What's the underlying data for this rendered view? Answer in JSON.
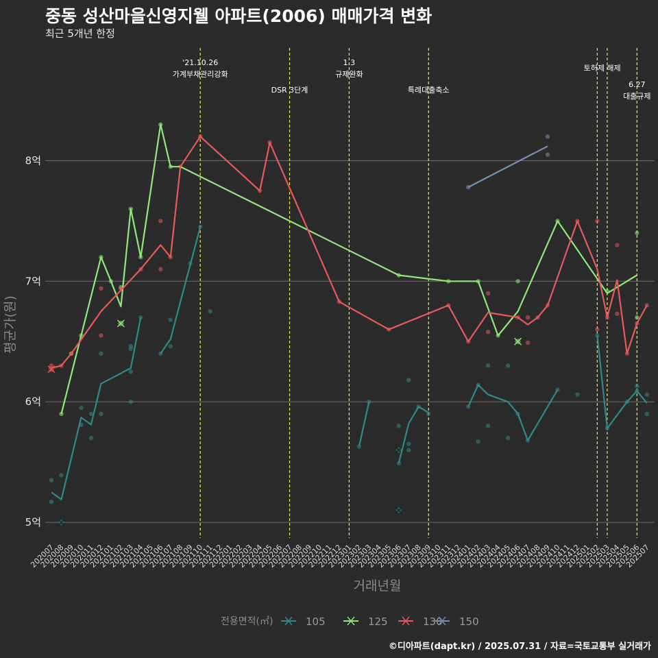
{
  "title": "중동 성산마을신영지웰 아파트(2006) 매매가격 변화",
  "subtitle": "최근 5개년 한정",
  "footer": "©디아파트(dapt.kr) / 2025.07.31 / 자료=국토교통부 실거래가",
  "colors": {
    "background": "#2b2b2b",
    "grid": "#6e6e6e",
    "event_line": "#e8e84a",
    "s105": "#2e8b8b",
    "s125": "#90e87a",
    "s130": "#e85a5a",
    "s150": "#7890b8"
  },
  "chart_data": {
    "type": "line",
    "title": "중동 성산마을신영지웰 아파트(2006) 매매가격 변화",
    "subtitle": "최근 5개년 한정",
    "xlabel": "거래년월",
    "ylabel": "평균가(원)",
    "ylim": [
      4.87,
      8.98
    ],
    "yticks": [
      5,
      6,
      7,
      8
    ],
    "ytick_labels": [
      "5억",
      "6억",
      "7억",
      "8억"
    ],
    "grid": true,
    "legend_placement": "bottom",
    "legend_title": "전용면적(㎡)",
    "categories": [
      "202007",
      "202008",
      "202009",
      "202010",
      "202011",
      "202012",
      "202101",
      "202102",
      "202103",
      "202104",
      "202105",
      "202106",
      "202107",
      "202108",
      "202109",
      "202110",
      "202111",
      "202112",
      "202201",
      "202202",
      "202203",
      "202204",
      "202205",
      "202206",
      "202207",
      "202208",
      "202209",
      "202210",
      "202211",
      "202212",
      "202301",
      "202302",
      "202303",
      "202304",
      "202305",
      "202306",
      "202307",
      "202308",
      "202309",
      "202310",
      "202311",
      "202312",
      "202401",
      "202402",
      "202403",
      "202404",
      "202405",
      "202406",
      "202407",
      "202408",
      "202409",
      "202410",
      "202411",
      "202412",
      "202501",
      "202502",
      "202503",
      "202504",
      "202505",
      "202506",
      "202507"
    ],
    "events": [
      {
        "month": "202110",
        "label": "'21.10.26\n가계부채관리강화",
        "label_row": 1
      },
      {
        "month": "202207",
        "label": "DSR 3단계",
        "label_row": 2
      },
      {
        "month": "202301",
        "label": "1.3\n규제완화",
        "label_row": 1
      },
      {
        "month": "202309",
        "label": "특례대출축소",
        "label_row": 2
      },
      {
        "month": "202502",
        "label": "토허제 해제",
        "label_row": 3,
        "end_month": "202503"
      },
      {
        "month": "202503",
        "label": "",
        "label_row": 0
      },
      {
        "month": "202506",
        "label": "6.27\n대출규제",
        "label_row": 4
      }
    ],
    "series": [
      {
        "name": "105",
        "color": "#2e8b8b",
        "line": [
          [
            "202007",
            5.25
          ],
          [
            "202008",
            5.19
          ],
          [
            "202010",
            5.87
          ],
          [
            "202011",
            5.81
          ],
          [
            "202012",
            6.15
          ],
          [
            "202103",
            6.28
          ],
          [
            "202104",
            6.7
          ],
          null,
          [
            "202106",
            6.4
          ],
          [
            "202107",
            6.52
          ],
          [
            "202110",
            7.45
          ],
          null,
          [
            "202302",
            5.63
          ],
          [
            "202303",
            6.0
          ],
          null,
          [
            "202306",
            5.49
          ],
          [
            "202307",
            5.82
          ],
          [
            "202308",
            5.96
          ],
          [
            "202309",
            5.91
          ],
          null,
          [
            "202401",
            5.96
          ],
          [
            "202402",
            6.14
          ],
          [
            "202403",
            6.06
          ],
          [
            "202405",
            6.0
          ],
          [
            "202406",
            5.9
          ],
          [
            "202407",
            5.68
          ],
          [
            "202410",
            6.1
          ],
          null,
          [
            "202502",
            6.55
          ],
          [
            "202503",
            5.78
          ],
          [
            "202505",
            6.0
          ],
          [
            "202506",
            6.09
          ],
          [
            "202507",
            5.99
          ]
        ],
        "points": [
          [
            "202007",
            5.35
          ],
          [
            "202007",
            5.17
          ],
          [
            "202008",
            5.39
          ],
          [
            "202010",
            5.95
          ],
          [
            "202010",
            5.81
          ],
          [
            "202011",
            5.9
          ],
          [
            "202011",
            5.7
          ],
          [
            "202012",
            6.4
          ],
          [
            "202012",
            5.9
          ],
          [
            "202103",
            6.46
          ],
          [
            "202103",
            6.44
          ],
          [
            "202103",
            6.25
          ],
          [
            "202103",
            6.0
          ],
          [
            "202104",
            6.7
          ],
          [
            "202106",
            6.4
          ],
          [
            "202107",
            6.68
          ],
          [
            "202107",
            6.46
          ],
          [
            "202109",
            7.15
          ],
          [
            "202110",
            7.45
          ],
          [
            "202111",
            6.75
          ],
          [
            "202302",
            5.63
          ],
          [
            "202303",
            6.0
          ],
          [
            "202306",
            5.8
          ],
          [
            "202306",
            5.49
          ],
          [
            "202307",
            6.18
          ],
          [
            "202307",
            5.65
          ],
          [
            "202307",
            5.6
          ],
          [
            "202308",
            5.96
          ],
          [
            "202309",
            5.9
          ],
          [
            "202401",
            5.96
          ],
          [
            "202402",
            6.14
          ],
          [
            "202402",
            5.67
          ],
          [
            "202403",
            6.3
          ],
          [
            "202403",
            5.8
          ],
          [
            "202405",
            6.3
          ],
          [
            "202405",
            5.7
          ],
          [
            "202406",
            5.9
          ],
          [
            "202407",
            5.68
          ],
          [
            "202410",
            6.1
          ],
          [
            "202412",
            6.06
          ],
          [
            "202502",
            6.55
          ],
          [
            "202503",
            5.78
          ],
          [
            "202505",
            6.0
          ],
          [
            "202506",
            6.13
          ],
          [
            "202506",
            6.09
          ],
          [
            "202507",
            6.06
          ],
          [
            "202507",
            5.9
          ]
        ],
        "crosses": [
          [
            "202008",
            5.0
          ],
          [
            "202306",
            5.6
          ],
          [
            "202306",
            5.1
          ]
        ]
      },
      {
        "name": "125",
        "color": "#90e87a",
        "line": [
          [
            "202008",
            5.9
          ],
          [
            "202010",
            6.55
          ],
          [
            "202012",
            7.2
          ],
          [
            "202101",
            7.0
          ],
          [
            "202102",
            6.79
          ],
          [
            "202103",
            7.6
          ],
          [
            "202104",
            7.2
          ],
          [
            "202106",
            8.3
          ],
          [
            "202107",
            7.95
          ],
          [
            "202108",
            7.95
          ],
          [
            "202306",
            7.05
          ],
          [
            "202311",
            7.0
          ],
          [
            "202402",
            7.0
          ],
          [
            "202404",
            6.55
          ],
          [
            "202406",
            6.75
          ],
          [
            "202410",
            7.5
          ],
          [
            "202503",
            6.9
          ],
          [
            "202506",
            7.05
          ]
        ],
        "points": [
          [
            "202008",
            5.9
          ],
          [
            "202009",
            6.4
          ],
          [
            "202010",
            6.55
          ],
          [
            "202012",
            7.2
          ],
          [
            "202101",
            7.0
          ],
          [
            "202102",
            6.95
          ],
          [
            "202103",
            7.6
          ],
          [
            "202104",
            7.2
          ],
          [
            "202106",
            8.3
          ],
          [
            "202107",
            7.95
          ],
          [
            "202306",
            7.05
          ],
          [
            "202311",
            7.0
          ],
          [
            "202402",
            7.0
          ],
          [
            "202404",
            6.55
          ],
          [
            "202406",
            7.0
          ],
          [
            "202410",
            7.5
          ],
          [
            "202503",
            6.92
          ],
          [
            "202506",
            7.4
          ],
          [
            "202506",
            6.7
          ]
        ],
        "crosses": [
          [
            "202102",
            6.65
          ],
          [
            "202406",
            6.5
          ]
        ]
      },
      {
        "name": "130",
        "color": "#e85a5a",
        "line": [
          [
            "202007",
            6.28
          ],
          [
            "202008",
            6.3
          ],
          [
            "202009",
            6.4
          ],
          [
            "202012",
            6.75
          ],
          [
            "202104",
            7.1
          ],
          [
            "202106",
            7.3
          ],
          [
            "202107",
            7.2
          ],
          [
            "202108",
            7.95
          ],
          [
            "202110",
            8.2
          ],
          [
            "202204",
            7.75
          ],
          [
            "202205",
            8.15
          ],
          [
            "202212",
            6.83
          ],
          [
            "202305",
            6.6
          ],
          [
            "202311",
            6.8
          ],
          [
            "202401",
            6.5
          ],
          [
            "202403",
            6.74
          ],
          [
            "202406",
            6.7
          ],
          [
            "202407",
            6.64
          ],
          [
            "202408",
            6.7
          ],
          [
            "202409",
            6.8
          ],
          [
            "202412",
            7.5
          ],
          [
            "202502",
            7.1
          ],
          [
            "202503",
            6.7
          ],
          [
            "202504",
            7.01
          ],
          [
            "202505",
            6.4
          ],
          [
            "202506",
            6.65
          ],
          [
            "202507",
            6.8
          ]
        ],
        "points": [
          [
            "202007",
            6.3
          ],
          [
            "202008",
            6.3
          ],
          [
            "202009",
            6.4
          ],
          [
            "202012",
            6.94
          ],
          [
            "202012",
            6.55
          ],
          [
            "202102",
            6.94
          ],
          [
            "202104",
            7.1
          ],
          [
            "202106",
            7.5
          ],
          [
            "202106",
            7.1
          ],
          [
            "202107",
            7.2
          ],
          [
            "202108",
            7.95
          ],
          [
            "202110",
            8.2
          ],
          [
            "202204",
            7.75
          ],
          [
            "202205",
            8.15
          ],
          [
            "202212",
            6.83
          ],
          [
            "202305",
            6.6
          ],
          [
            "202311",
            6.8
          ],
          [
            "202401",
            6.5
          ],
          [
            "202403",
            6.9
          ],
          [
            "202403",
            6.58
          ],
          [
            "202406",
            6.7
          ],
          [
            "202407",
            6.7
          ],
          [
            "202407",
            6.49
          ],
          [
            "202408",
            6.7
          ],
          [
            "202409",
            6.8
          ],
          [
            "202412",
            7.5
          ],
          [
            "202502",
            7.5
          ],
          [
            "202502",
            6.6
          ],
          [
            "202503",
            6.7
          ],
          [
            "202504",
            7.3
          ],
          [
            "202504",
            6.73
          ],
          [
            "202505",
            6.4
          ],
          [
            "202506",
            6.65
          ],
          [
            "202507",
            6.8
          ]
        ],
        "crosses": [
          [
            "202007",
            6.27
          ]
        ]
      },
      {
        "name": "150",
        "color": "#7890b8",
        "line": [
          [
            "202401",
            7.78
          ],
          [
            "202409",
            8.12
          ]
        ],
        "points": [
          [
            "202401",
            7.78
          ],
          [
            "202409",
            8.2
          ],
          [
            "202409",
            8.05
          ]
        ],
        "crosses": []
      }
    ]
  }
}
